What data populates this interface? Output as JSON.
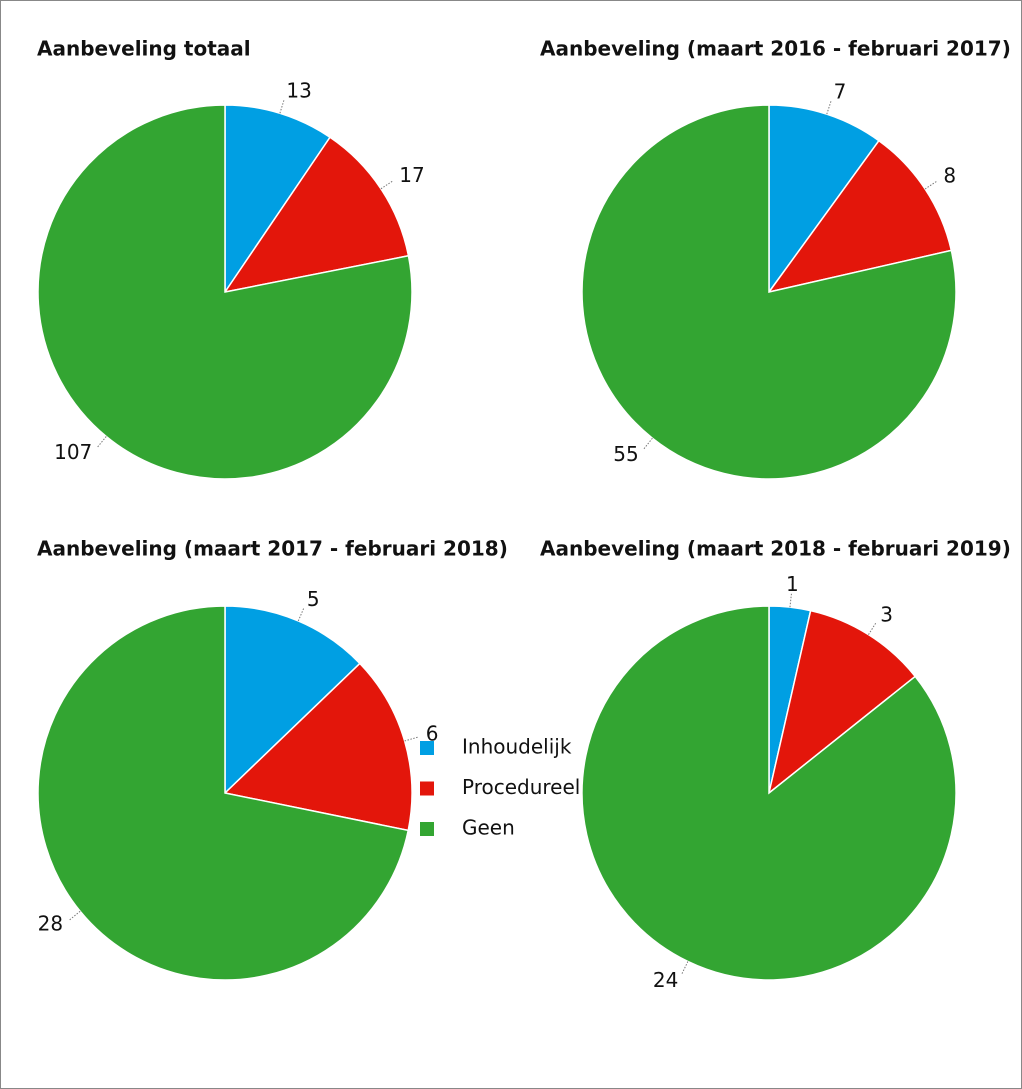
{
  "legend": [
    {
      "name": "Inhoudelijk",
      "color": "#009fe3"
    },
    {
      "name": "Procedureel",
      "color": "#e3160b"
    },
    {
      "name": "Geen",
      "color": "#33a532"
    }
  ],
  "chart_data": [
    {
      "type": "pie",
      "title": "Aanbeveling totaal",
      "values": [
        13,
        17,
        107
      ]
    },
    {
      "type": "pie",
      "title": "Aanbeveling (maart 2016 - februari 2017)",
      "values": [
        7,
        8,
        55
      ]
    },
    {
      "type": "pie",
      "title": "Aanbeveling (maart 2017 - februari 2018)",
      "values": [
        5,
        6,
        28
      ]
    },
    {
      "type": "pie",
      "title": "Aanbeveling (maart 2018 - februari 2019)",
      "values": [
        1,
        3,
        24
      ]
    }
  ]
}
